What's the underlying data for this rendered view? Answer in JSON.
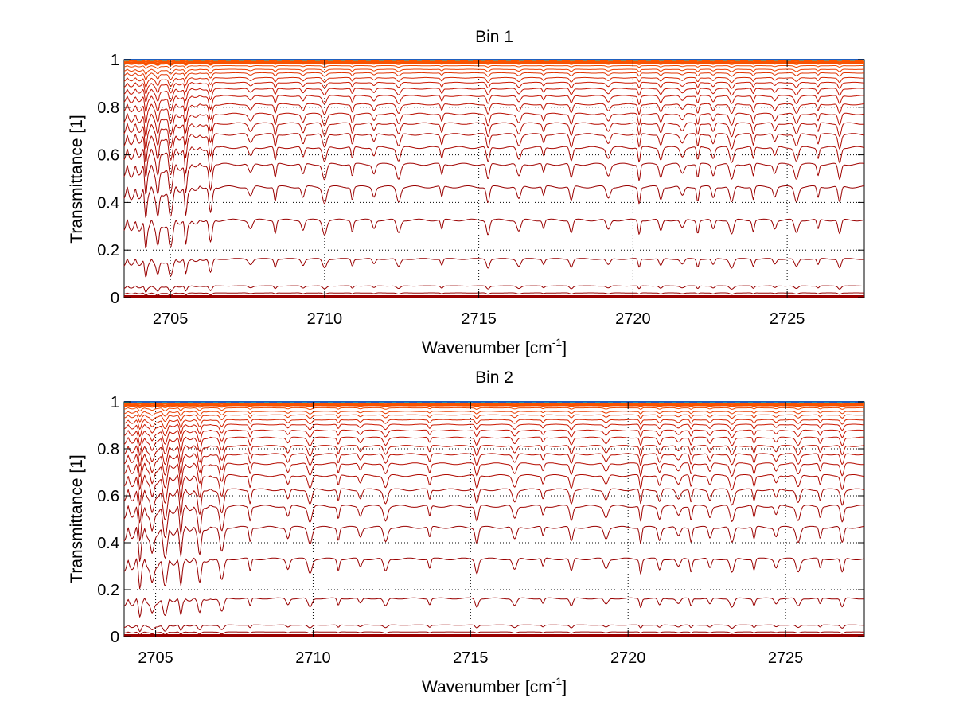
{
  "chart_data": [
    {
      "type": "line",
      "title": "Bin 1",
      "xlabel": "Wavenumber [cm",
      "xlabel_sup": "-1",
      "xlabel_end": "]",
      "ylabel": "Transmittance [1]",
      "xlim": [
        2703.5,
        2727.5
      ],
      "ylim": [
        0,
        1
      ],
      "x_ticks": [
        2705,
        2710,
        2715,
        2720,
        2725
      ],
      "x_tick_labels": [
        "2705",
        "2710",
        "2715",
        "2720",
        "2725"
      ],
      "y_ticks": [
        0,
        0.2,
        0.4,
        0.6,
        0.8,
        1
      ],
      "y_tick_labels": [
        "0",
        "0.2",
        "0.4",
        "0.6",
        "0.8",
        "1"
      ],
      "grid": true,
      "levels": [
        0.005,
        0.02,
        0.05,
        0.165,
        0.33,
        0.47,
        0.565,
        0.635,
        0.69,
        0.735,
        0.775,
        0.815,
        0.85,
        0.88,
        0.905,
        0.925,
        0.945,
        0.96,
        0.975,
        0.985,
        0.99,
        0.995,
        1.0
      ],
      "absorption_lines": [
        2704.2,
        2704.6,
        2705.0,
        2705.5,
        2706.3,
        2707.6,
        2708.4,
        2709.3,
        2710.0,
        2710.9,
        2711.6,
        2712.4,
        2713.8,
        2715.3,
        2716.3,
        2717.1,
        2718.0,
        2719.2,
        2720.2,
        2720.9,
        2721.6,
        2722.1,
        2722.6,
        2723.2,
        2723.9,
        2724.6,
        2725.3,
        2726.0,
        2726.7
      ]
    },
    {
      "type": "line",
      "title": "Bin 2",
      "xlabel": "Wavenumber [cm",
      "xlabel_sup": "-1",
      "xlabel_end": "]",
      "ylabel": "Transmittance [1]",
      "xlim": [
        2704,
        2727.5
      ],
      "ylim": [
        0,
        1
      ],
      "x_ticks": [
        2705,
        2710,
        2715,
        2720,
        2725
      ],
      "x_tick_labels": [
        "2705",
        "2710",
        "2715",
        "2720",
        "2725"
      ],
      "y_ticks": [
        0,
        0.2,
        0.4,
        0.6,
        0.8,
        1
      ],
      "y_tick_labels": [
        "0",
        "0.2",
        "0.4",
        "0.6",
        "0.8",
        "1"
      ],
      "grid": true,
      "levels": [
        0.005,
        0.02,
        0.05,
        0.165,
        0.335,
        0.47,
        0.56,
        0.63,
        0.69,
        0.74,
        0.78,
        0.815,
        0.85,
        0.88,
        0.905,
        0.925,
        0.945,
        0.96,
        0.975,
        0.985,
        0.99,
        0.995,
        1.0
      ],
      "absorption_lines": [
        2704.5,
        2704.9,
        2705.3,
        2705.8,
        2706.4,
        2707.1,
        2708.0,
        2709.2,
        2709.9,
        2710.8,
        2711.5,
        2712.3,
        2713.7,
        2715.2,
        2716.4,
        2717.3,
        2718.2,
        2719.3,
        2720.4,
        2721.0,
        2721.6,
        2722.0,
        2722.6,
        2723.3,
        2724.0,
        2724.7,
        2725.4,
        2726.1,
        2726.8
      ]
    }
  ],
  "colors": {
    "dark_red": "#990000",
    "red": "#c81400",
    "orange": "#ff5a00",
    "top_blue": "#1f5fbf",
    "top_cyan": "#20c0c0"
  }
}
